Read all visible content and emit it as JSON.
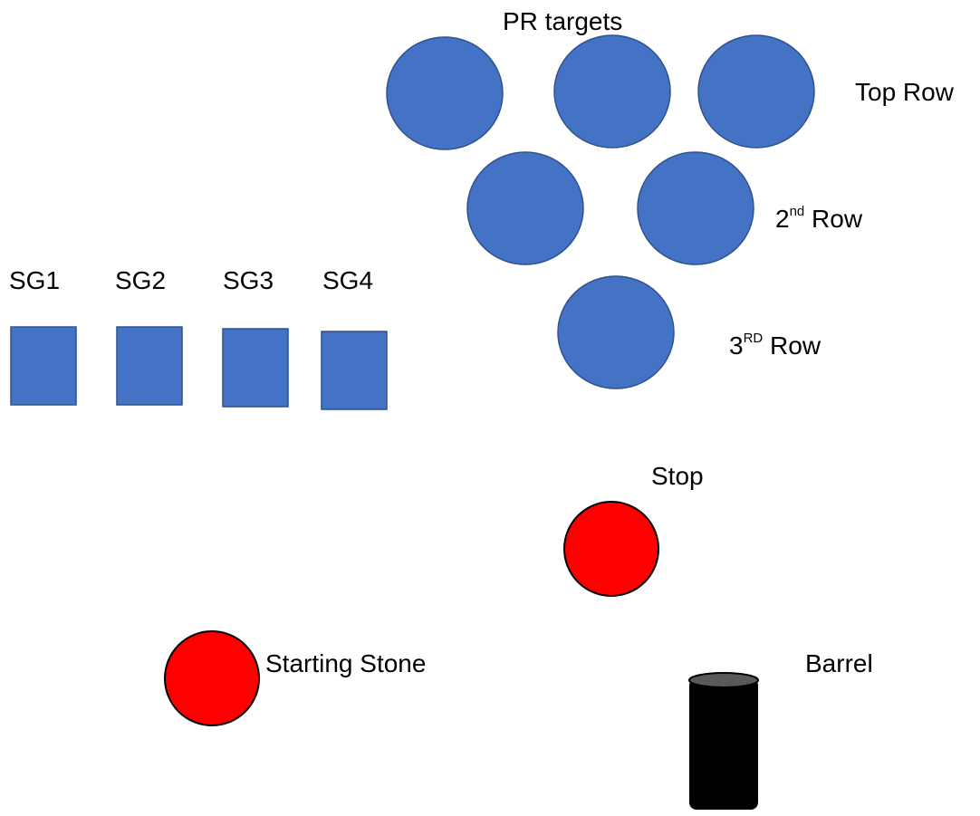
{
  "colors": {
    "target_fill": "#4472C4",
    "target_stroke": "#2F528F",
    "stone_fill": "#FF0000",
    "stone_stroke": "#000000",
    "barrel_body": "#000000",
    "barrel_top": "#595959"
  },
  "labels": {
    "pr_targets": "PR targets",
    "top_row": "Top Row",
    "second_row": {
      "number": "2",
      "suffix": "nd",
      "word": "Row"
    },
    "third_row": {
      "number": "3",
      "suffix": "RD",
      "word": "Row"
    },
    "sg1": "SG1",
    "sg2": "SG2",
    "sg3": "SG3",
    "sg4": "SG4",
    "stop": "Stop",
    "starting_stone": "Starting Stone",
    "barrel": "Barrel"
  }
}
